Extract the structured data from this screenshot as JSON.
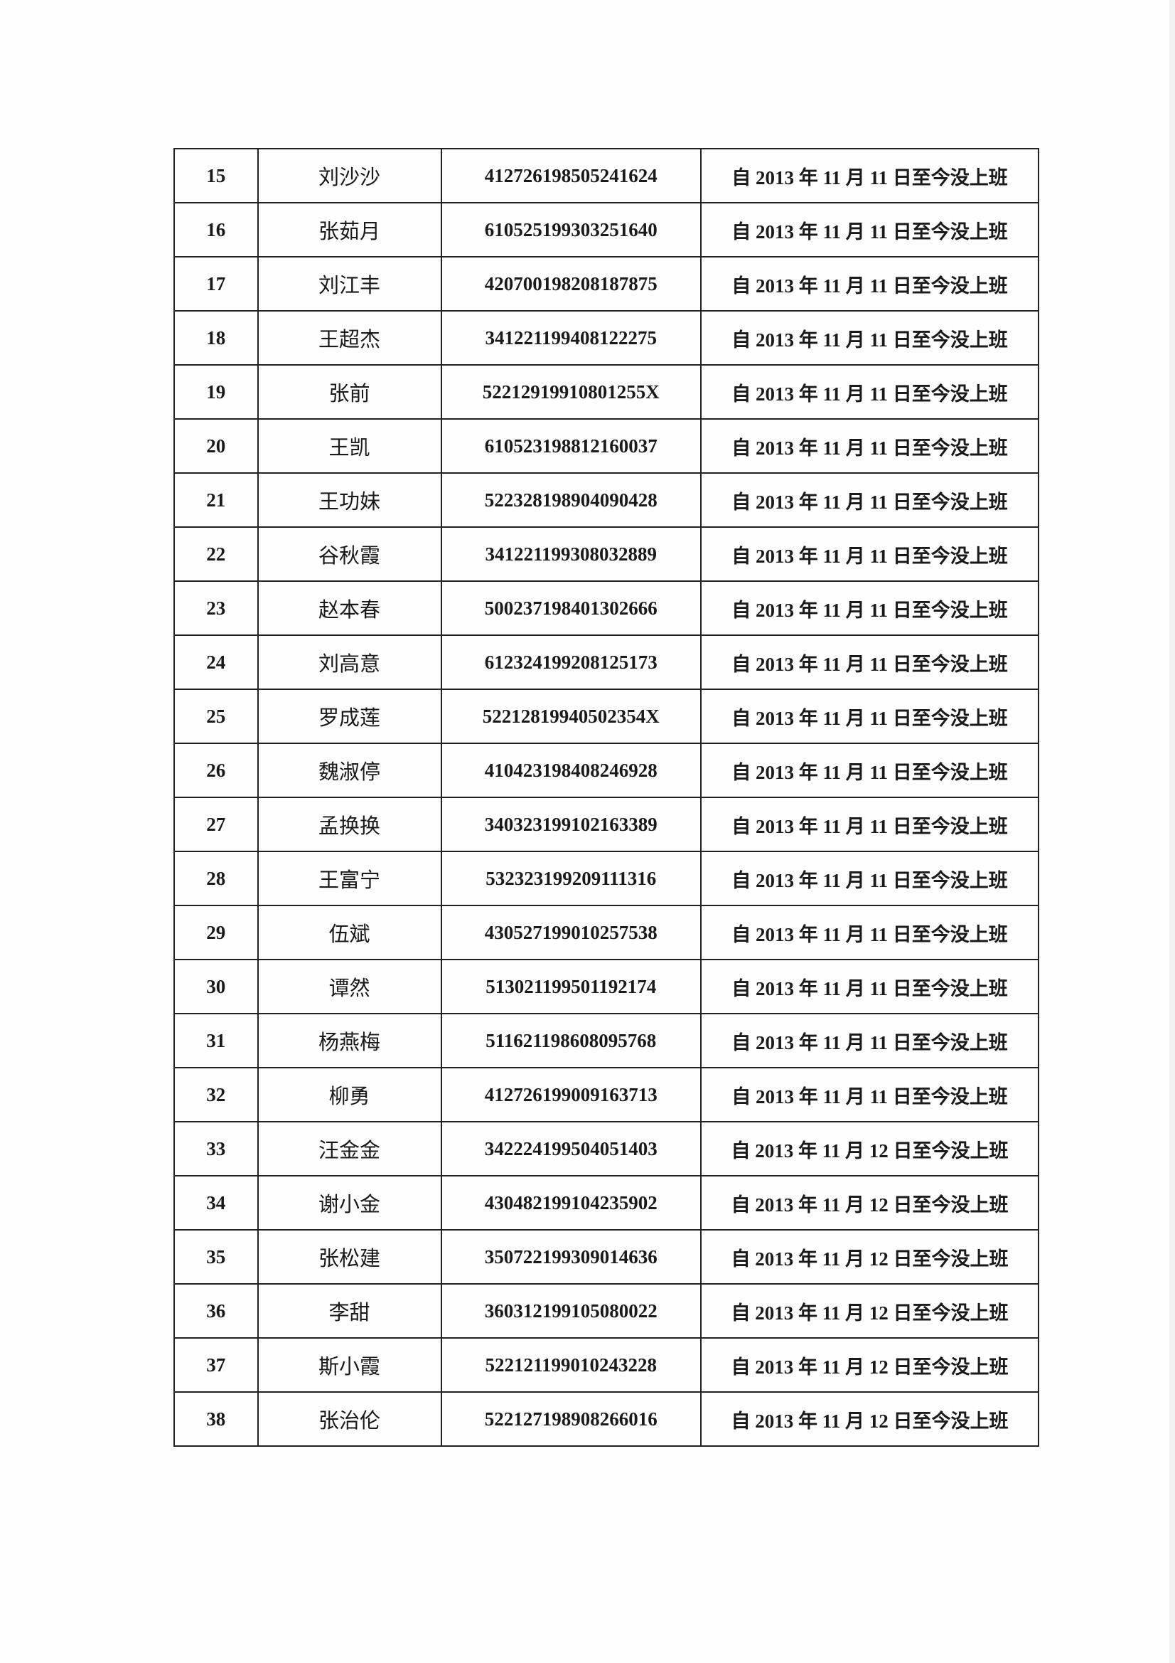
{
  "table": {
    "rows": [
      {
        "no": "15",
        "name": "刘沙沙",
        "id": "412726198505241624",
        "status": "自 2013 年 11 月 11 日至今没上班"
      },
      {
        "no": "16",
        "name": "张茹月",
        "id": "610525199303251640",
        "status": "自 2013 年 11 月 11 日至今没上班"
      },
      {
        "no": "17",
        "name": "刘江丰",
        "id": "420700198208187875",
        "status": "自 2013 年 11 月 11 日至今没上班"
      },
      {
        "no": "18",
        "name": "王超杰",
        "id": "341221199408122275",
        "status": "自 2013 年 11 月 11 日至今没上班"
      },
      {
        "no": "19",
        "name": "张前",
        "id": "52212919910801255X",
        "status": "自 2013 年 11 月 11 日至今没上班"
      },
      {
        "no": "20",
        "name": "王凯",
        "id": "610523198812160037",
        "status": "自 2013 年 11 月 11 日至今没上班"
      },
      {
        "no": "21",
        "name": "王功妹",
        "id": "522328198904090428",
        "status": "自 2013 年 11 月 11 日至今没上班"
      },
      {
        "no": "22",
        "name": "谷秋霞",
        "id": "341221199308032889",
        "status": "自 2013 年 11 月 11 日至今没上班"
      },
      {
        "no": "23",
        "name": "赵本春",
        "id": "500237198401302666",
        "status": "自 2013 年 11 月 11 日至今没上班"
      },
      {
        "no": "24",
        "name": "刘高意",
        "id": "612324199208125173",
        "status": "自 2013 年 11 月 11 日至今没上班"
      },
      {
        "no": "25",
        "name": "罗成莲",
        "id": "52212819940502354X",
        "status": "自 2013 年 11 月 11 日至今没上班"
      },
      {
        "no": "26",
        "name": "魏淑停",
        "id": "410423198408246928",
        "status": "自 2013 年 11 月 11 日至今没上班"
      },
      {
        "no": "27",
        "name": "孟换换",
        "id": "340323199102163389",
        "status": "自 2013 年 11 月 11 日至今没上班"
      },
      {
        "no": "28",
        "name": "王富宁",
        "id": "532323199209111316",
        "status": "自 2013 年 11 月 11 日至今没上班"
      },
      {
        "no": "29",
        "name": "伍斌",
        "id": "430527199010257538",
        "status": "自 2013 年 11 月 11 日至今没上班"
      },
      {
        "no": "30",
        "name": "谭然",
        "id": "513021199501192174",
        "status": "自 2013 年 11 月 11 日至今没上班"
      },
      {
        "no": "31",
        "name": "杨燕梅",
        "id": "511621198608095768",
        "status": "自 2013 年 11 月 11 日至今没上班"
      },
      {
        "no": "32",
        "name": "柳勇",
        "id": "412726199009163713",
        "status": "自 2013 年 11 月 11 日至今没上班"
      },
      {
        "no": "33",
        "name": "汪金金",
        "id": "342224199504051403",
        "status": "自 2013 年 11 月 12 日至今没上班"
      },
      {
        "no": "34",
        "name": "谢小金",
        "id": "430482199104235902",
        "status": "自 2013 年 11 月 12 日至今没上班"
      },
      {
        "no": "35",
        "name": "张松建",
        "id": "350722199309014636",
        "status": "自 2013 年 11 月 12 日至今没上班"
      },
      {
        "no": "36",
        "name": "李甜",
        "id": "360312199105080022",
        "status": "自 2013 年 11 月 12 日至今没上班"
      },
      {
        "no": "37",
        "name": "斯小霞",
        "id": "522121199010243228",
        "status": "自 2013 年 11 月 12 日至今没上班"
      },
      {
        "no": "38",
        "name": "张治伦",
        "id": "522127198908266016",
        "status": "自 2013 年 11 月 12 日至今没上班"
      }
    ]
  }
}
